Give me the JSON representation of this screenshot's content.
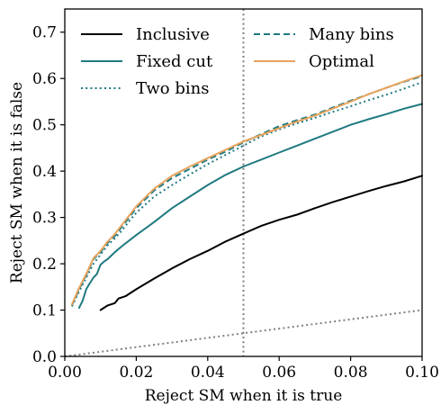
{
  "chart_data": {
    "type": "line",
    "xlabel": "Reject SM when it is true",
    "ylabel": "Reject SM when it is false",
    "xlim": [
      0.0,
      0.1
    ],
    "ylim": [
      0.0,
      0.75
    ],
    "xticks": [
      0.0,
      0.02,
      0.04,
      0.06,
      0.08,
      0.1
    ],
    "xtick_labels": [
      "0.00",
      "0.02",
      "0.04",
      "0.06",
      "0.08",
      "0.10"
    ],
    "yticks": [
      0.0,
      0.1,
      0.2,
      0.3,
      0.4,
      0.5,
      0.6,
      0.7
    ],
    "ytick_labels": [
      "0.0",
      "0.1",
      "0.2",
      "0.3",
      "0.4",
      "0.5",
      "0.6",
      "0.7"
    ],
    "grid": false,
    "legend_position": "top",
    "vline": {
      "x": 0.05,
      "color": "#7f7f7f",
      "style": "dotted"
    },
    "diagonal": {
      "points": [
        [
          0.0,
          0.0
        ],
        [
          0.1,
          0.1
        ]
      ],
      "color": "#7f7f7f",
      "style": "dotted"
    },
    "series": [
      {
        "name": "Inclusive",
        "color": "#000000",
        "style": "solid",
        "x": [
          0.01,
          0.012,
          0.014,
          0.015,
          0.017,
          0.018,
          0.02,
          0.025,
          0.03,
          0.035,
          0.04,
          0.045,
          0.05,
          0.055,
          0.06,
          0.065,
          0.07,
          0.075,
          0.08,
          0.085,
          0.09,
          0.095,
          0.1
        ],
        "y": [
          0.1,
          0.11,
          0.115,
          0.125,
          0.13,
          0.135,
          0.145,
          0.168,
          0.19,
          0.21,
          0.228,
          0.248,
          0.265,
          0.282,
          0.295,
          0.306,
          0.32,
          0.333,
          0.345,
          0.357,
          0.368,
          0.378,
          0.39
        ]
      },
      {
        "name": "Fixed cut",
        "color": "#1f7a80",
        "style": "solid",
        "x": [
          0.004,
          0.005,
          0.006,
          0.007,
          0.008,
          0.009,
          0.01,
          0.011,
          0.012,
          0.014,
          0.016,
          0.018,
          0.02,
          0.025,
          0.03,
          0.035,
          0.04,
          0.045,
          0.05,
          0.055,
          0.06,
          0.065,
          0.07,
          0.075,
          0.08,
          0.085,
          0.09,
          0.095,
          0.1
        ],
        "y": [
          0.105,
          0.12,
          0.145,
          0.158,
          0.17,
          0.178,
          0.198,
          0.205,
          0.21,
          0.225,
          0.238,
          0.25,
          0.262,
          0.29,
          0.32,
          0.345,
          0.37,
          0.392,
          0.41,
          0.425,
          0.44,
          0.455,
          0.47,
          0.485,
          0.5,
          0.512,
          0.523,
          0.535,
          0.545
        ]
      },
      {
        "name": "Two bins",
        "color": "#1f7a80",
        "style": "dotted",
        "x": [
          0.002,
          0.004,
          0.006,
          0.008,
          0.01,
          0.012,
          0.014,
          0.016,
          0.018,
          0.02,
          0.025,
          0.03,
          0.035,
          0.04,
          0.045,
          0.05,
          0.055,
          0.06,
          0.065,
          0.07,
          0.075,
          0.08,
          0.085,
          0.09,
          0.095,
          0.1
        ],
        "y": [
          0.108,
          0.14,
          0.17,
          0.2,
          0.22,
          0.24,
          0.255,
          0.272,
          0.292,
          0.31,
          0.345,
          0.37,
          0.393,
          0.415,
          0.435,
          0.455,
          0.475,
          0.49,
          0.503,
          0.515,
          0.528,
          0.54,
          0.553,
          0.565,
          0.578,
          0.592
        ]
      },
      {
        "name": "Many bins",
        "color": "#1f7a80",
        "style": "dashed",
        "x": [
          0.002,
          0.004,
          0.006,
          0.008,
          0.01,
          0.012,
          0.014,
          0.016,
          0.018,
          0.02,
          0.025,
          0.03,
          0.035,
          0.04,
          0.045,
          0.05,
          0.055,
          0.06,
          0.065,
          0.07,
          0.075,
          0.08,
          0.085,
          0.09,
          0.095,
          0.1
        ],
        "y": [
          0.11,
          0.145,
          0.175,
          0.21,
          0.225,
          0.245,
          0.26,
          0.28,
          0.3,
          0.32,
          0.358,
          0.385,
          0.405,
          0.425,
          0.442,
          0.462,
          0.48,
          0.497,
          0.51,
          0.522,
          0.537,
          0.552,
          0.566,
          0.58,
          0.593,
          0.605
        ]
      },
      {
        "name": "Optimal",
        "color": "#e8a35c",
        "style": "solid",
        "x": [
          0.002,
          0.004,
          0.006,
          0.008,
          0.01,
          0.012,
          0.014,
          0.016,
          0.018,
          0.02,
          0.025,
          0.03,
          0.035,
          0.04,
          0.045,
          0.05,
          0.055,
          0.06,
          0.065,
          0.07,
          0.075,
          0.08,
          0.085,
          0.09,
          0.095,
          0.1
        ],
        "y": [
          0.112,
          0.148,
          0.178,
          0.212,
          0.228,
          0.248,
          0.264,
          0.284,
          0.304,
          0.324,
          0.362,
          0.39,
          0.41,
          0.428,
          0.446,
          0.464,
          0.478,
          0.493,
          0.507,
          0.52,
          0.535,
          0.55,
          0.566,
          0.58,
          0.594,
          0.607
        ]
      }
    ]
  }
}
